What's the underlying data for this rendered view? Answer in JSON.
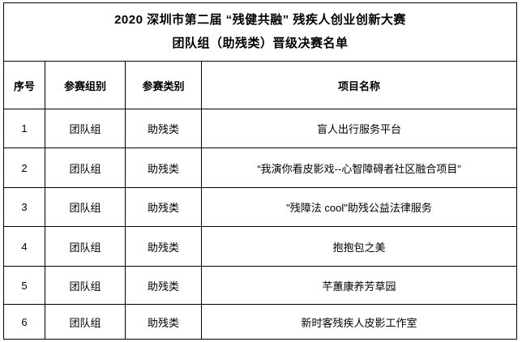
{
  "page": {
    "background": "#ffffff",
    "border_color": "#000000",
    "text_color": "#000000"
  },
  "title": {
    "line1": "2020 深圳市第二届 “残健共融” 残疾人创业创新大赛",
    "line2": "团队组（助残类）晋级决赛名单"
  },
  "table": {
    "columns": [
      "序号",
      "参赛组别",
      "参赛类别",
      "项目名称"
    ],
    "rows": [
      {
        "no": "1",
        "group": "团队组",
        "category": "助残类",
        "project": "盲人出行服务平台"
      },
      {
        "no": "2",
        "group": "团队组",
        "category": "助残类",
        "project": "“我演你看皮影戏--心智障碍者社区融合项目”"
      },
      {
        "no": "3",
        "group": "团队组",
        "category": "助残类",
        "project": "\"残障法 cool\"助残公益法律服务"
      },
      {
        "no": "4",
        "group": "团队组",
        "category": "助残类",
        "project": "抱抱包之美"
      },
      {
        "no": "5",
        "group": "团队组",
        "category": "助残类",
        "project": "芊蕙康养芳草园"
      },
      {
        "no": "6",
        "group": "团队组",
        "category": "助残类",
        "project": "新时客残疾人皮影工作室"
      }
    ]
  }
}
